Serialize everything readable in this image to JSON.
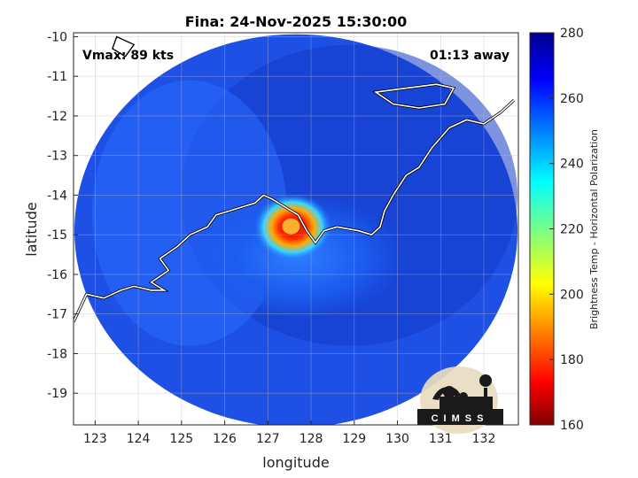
{
  "chart_data": {
    "type": "heatmap",
    "title": "Fina: 24-Nov-2025 15:30:00",
    "xlabel": "longitude",
    "ylabel": "latitude",
    "xlim": [
      122.5,
      132.8
    ],
    "ylim": [
      -19.8,
      -9.9
    ],
    "xticks": [
      123,
      124,
      125,
      126,
      127,
      128,
      129,
      130,
      131,
      132
    ],
    "yticks": [
      -10,
      -11,
      -12,
      -13,
      -14,
      -15,
      -16,
      -17,
      -18,
      -19
    ],
    "grid": true,
    "annotations": {
      "vmax": "Vmax: 89 kts",
      "away": "01:13 away"
    },
    "storm_center": {
      "lon": 127.7,
      "lat": -14.9
    },
    "swath_center": {
      "lon": 127.65,
      "lat": -14.9
    },
    "colorbar": {
      "label": "Brightness Temp - Horizontal Polarization",
      "range": [
        160,
        280
      ],
      "ticks": [
        280,
        260,
        240,
        220,
        200,
        180,
        160
      ],
      "colormap": "jet"
    },
    "logo_text": "CIMSS"
  }
}
